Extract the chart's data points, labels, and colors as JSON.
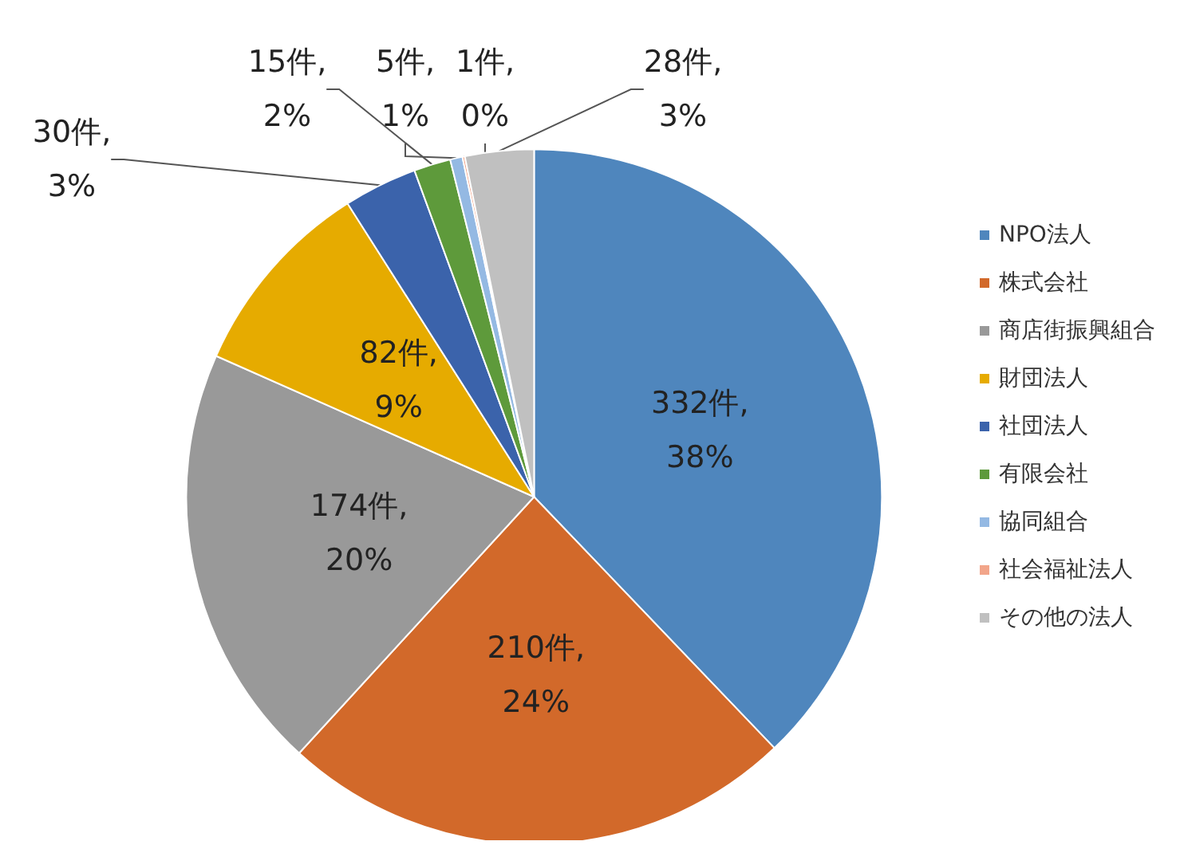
{
  "chart_data": {
    "type": "pie",
    "categories": [
      "NPO法人",
      "株式会社",
      "商店街振興組合",
      "財団法人",
      "社団法人",
      "有限会社",
      "協同組合",
      "社会福祉法人",
      "その他の法人"
    ],
    "values": [
      332,
      210,
      174,
      82,
      30,
      15,
      5,
      1,
      28
    ],
    "colors": [
      "#4f86bd",
      "#d2692a",
      "#999999",
      "#e6ab00",
      "#3b63ab",
      "#5e9a3b",
      "#94b9e3",
      "#f2a58a",
      "#c0c0c0"
    ],
    "value_labels": [
      "332件,\n38%",
      "210件,\n24%",
      "174件,\n20%",
      "82件,\n9%",
      "30件,\n3%",
      "15件,\n2%",
      "5件,\n1%",
      "1件,\n0%",
      "28件,\n3%"
    ],
    "legend": "right"
  }
}
